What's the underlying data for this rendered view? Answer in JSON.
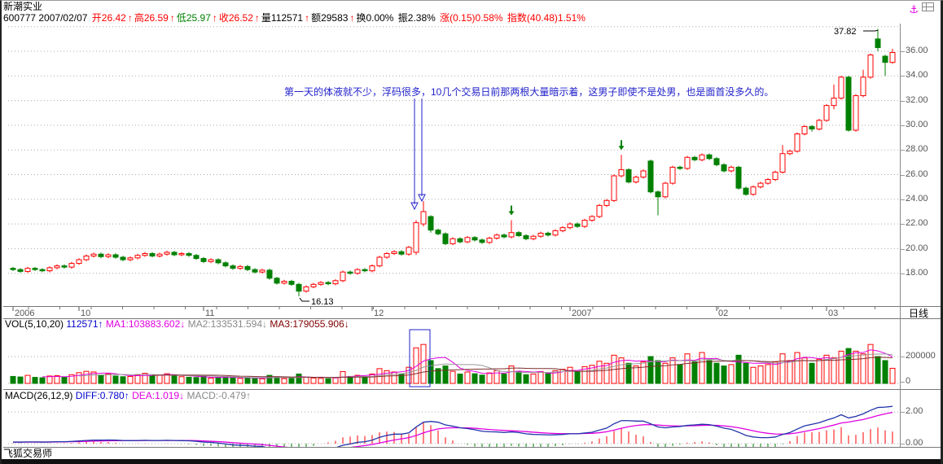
{
  "window": {
    "title": "新潮实业",
    "status_bar": "飞狐交易师",
    "period_label": "日线"
  },
  "colors": {
    "up": "#ff0000",
    "down": "#008000",
    "annotation": "#2222cc",
    "ma1": "#e000e0",
    "ma2": "#999999",
    "ma3": "#803030",
    "diff": "#2233aa",
    "dea": "#e000e0",
    "grid": "#aaaaaa"
  },
  "info_bar": {
    "segments": [
      {
        "t": "600777  2007/02/07  ",
        "c": "k"
      },
      {
        "t": "开26.42",
        "c": "r"
      },
      {
        "t": "↑",
        "c": "r"
      },
      {
        "t": "高26.59",
        "c": "r"
      },
      {
        "t": "↑",
        "c": "r"
      },
      {
        "t": "低25.97",
        "c": "g"
      },
      {
        "t": "↑",
        "c": "r"
      },
      {
        "t": "收26.52",
        "c": "r"
      },
      {
        "t": "↑",
        "c": "r"
      },
      {
        "t": "量112571",
        "c": "k"
      },
      {
        "t": "↑",
        "c": "r"
      },
      {
        "t": "额29583",
        "c": "k"
      },
      {
        "t": "↑",
        "c": "r"
      },
      {
        "t": "换0.00%",
        "c": "k"
      },
      {
        "t": " 振2.38%",
        "c": "k"
      },
      {
        "t": " 涨(0.15)0.58%",
        "c": "r"
      },
      {
        "t": " 指数(40.48)1.51%",
        "c": "r"
      }
    ]
  },
  "vol_header": {
    "segments": [
      {
        "t": "VOL(5,10,20)  ",
        "c": "k"
      },
      {
        "t": "112571↑",
        "c": "b"
      },
      {
        "t": " MA1:103883.602↓",
        "c": "m"
      },
      {
        "t": " MA2:133531.594↓",
        "c": "gr"
      },
      {
        "t": " MA3:179055.906↓",
        "c": "dr"
      }
    ]
  },
  "macd_header": {
    "segments": [
      {
        "t": "MACD(26,12,9)  ",
        "c": "k"
      },
      {
        "t": "DIFF:0.780↑",
        "c": "b"
      },
      {
        "t": " DEA:1.019↓",
        "c": "m"
      },
      {
        "t": " MACD:-0.479↑",
        "c": "gr"
      }
    ]
  },
  "chart_data": [
    {
      "type": "candlestick",
      "title": "新潮实业 600777 日线",
      "annotation_text": "第一天的体液就不少，浮码很多，10几个交易日前那两根大量暗示着，这男子即使不是处男，也是面首没多久的。",
      "y_tick_labels": [
        "36.00",
        "34.00",
        "32.00",
        "30.00",
        "28.00",
        "26.00",
        "24.00",
        "22.00",
        "20.00",
        "18.00"
      ],
      "ylim": [
        16.0,
        38.3
      ],
      "high_marker": {
        "label": "37.82",
        "candle": 118
      },
      "low_marker": {
        "label": "16.13",
        "candle": 39
      },
      "blue_arrow_candles": [
        55,
        56
      ],
      "green_arrow_candles": [
        68,
        83
      ],
      "x_ticks": [
        {
          "i": 0,
          "label": "2006"
        },
        {
          "i": 9,
          "label": "10"
        },
        {
          "i": 26,
          "label": "11"
        },
        {
          "i": 49,
          "label": "12"
        },
        {
          "i": 76,
          "label": "2007"
        },
        {
          "i": 96,
          "label": "02"
        },
        {
          "i": 111,
          "label": "03"
        }
      ],
      "candles": [
        [
          18.4,
          18.52,
          18.18,
          18.3
        ],
        [
          18.3,
          18.42,
          18.03,
          18.15
        ],
        [
          18.15,
          18.52,
          18.03,
          18.4
        ],
        [
          18.4,
          18.52,
          18.18,
          18.3
        ],
        [
          18.3,
          18.42,
          18.08,
          18.2
        ],
        [
          18.2,
          18.57,
          18.08,
          18.45
        ],
        [
          18.45,
          18.72,
          18.33,
          18.6
        ],
        [
          18.6,
          18.72,
          18.38,
          18.5
        ],
        [
          18.5,
          18.92,
          18.38,
          18.8
        ],
        [
          18.8,
          19.22,
          18.68,
          19.1
        ],
        [
          19.1,
          19.52,
          18.98,
          19.4
        ],
        [
          19.4,
          19.67,
          19.28,
          19.55
        ],
        [
          19.55,
          19.67,
          19.23,
          19.35
        ],
        [
          19.35,
          19.62,
          19.23,
          19.5
        ],
        [
          19.5,
          19.62,
          19.18,
          19.3
        ],
        [
          19.3,
          19.42,
          18.98,
          19.1
        ],
        [
          19.1,
          19.37,
          18.98,
          19.25
        ],
        [
          19.25,
          19.57,
          19.13,
          19.45
        ],
        [
          19.45,
          19.72,
          19.33,
          19.6
        ],
        [
          19.6,
          19.72,
          19.28,
          19.4
        ],
        [
          19.4,
          19.67,
          19.28,
          19.55
        ],
        [
          19.55,
          19.82,
          19.43,
          19.7
        ],
        [
          19.7,
          19.82,
          19.38,
          19.5
        ],
        [
          19.5,
          19.72,
          19.38,
          19.6
        ],
        [
          19.6,
          19.72,
          19.33,
          19.45
        ],
        [
          19.45,
          19.57,
          19.08,
          19.2
        ],
        [
          19.2,
          19.32,
          18.83,
          18.95
        ],
        [
          18.95,
          19.22,
          18.83,
          19.1
        ],
        [
          19.1,
          19.22,
          18.73,
          18.85
        ],
        [
          18.85,
          18.97,
          18.48,
          18.6
        ],
        [
          18.6,
          18.72,
          18.28,
          18.4
        ],
        [
          18.4,
          18.67,
          18.28,
          18.55
        ],
        [
          18.55,
          18.67,
          18.18,
          18.3
        ],
        [
          18.3,
          18.42,
          17.98,
          18.1
        ],
        [
          18.1,
          18.37,
          17.98,
          18.25
        ],
        [
          18.25,
          18.37,
          17.48,
          17.6
        ],
        [
          17.6,
          17.72,
          17.08,
          17.2
        ],
        [
          17.2,
          17.47,
          17.08,
          17.35
        ],
        [
          17.35,
          17.47,
          16.98,
          17.1
        ],
        [
          17.1,
          17.22,
          16.13,
          16.55
        ],
        [
          16.55,
          17.02,
          16.43,
          16.9
        ],
        [
          16.9,
          17.22,
          16.78,
          17.1
        ],
        [
          17.1,
          17.37,
          16.98,
          17.25
        ],
        [
          17.25,
          17.37,
          17.03,
          17.15
        ],
        [
          17.15,
          17.52,
          17.03,
          17.4
        ],
        [
          17.4,
          18.22,
          17.28,
          18.1
        ],
        [
          18.1,
          18.22,
          17.88,
          18.0
        ],
        [
          18.0,
          18.42,
          17.88,
          18.3
        ],
        [
          18.3,
          18.42,
          18.08,
          18.2
        ],
        [
          18.2,
          18.72,
          18.08,
          18.6
        ],
        [
          18.6,
          19.42,
          18.48,
          19.3
        ],
        [
          19.3,
          19.72,
          19.18,
          19.6
        ],
        [
          19.6,
          19.87,
          19.48,
          19.75
        ],
        [
          19.75,
          19.87,
          19.43,
          19.55
        ],
        [
          19.55,
          20.22,
          19.43,
          20.1
        ],
        [
          19.7,
          22.3,
          19.5,
          22.1
        ],
        [
          22.0,
          23.85,
          21.8,
          23.0
        ],
        [
          22.6,
          22.7,
          21.3,
          21.5
        ],
        [
          21.5,
          21.62,
          21.08,
          21.2
        ],
        [
          21.2,
          21.32,
          20.28,
          20.4
        ],
        [
          20.4,
          20.92,
          20.28,
          20.8
        ],
        [
          20.8,
          20.92,
          20.43,
          20.55
        ],
        [
          20.55,
          21.02,
          20.43,
          20.9
        ],
        [
          20.9,
          21.02,
          20.58,
          20.7
        ],
        [
          20.7,
          20.82,
          20.38,
          20.5
        ],
        [
          20.5,
          20.97,
          20.38,
          20.85
        ],
        [
          20.85,
          21.22,
          20.73,
          21.1
        ],
        [
          21.1,
          21.22,
          20.83,
          20.95
        ],
        [
          20.95,
          22.3,
          20.83,
          21.3
        ],
        [
          21.3,
          21.42,
          20.93,
          21.05
        ],
        [
          21.05,
          21.17,
          20.68,
          20.8
        ],
        [
          20.8,
          21.12,
          20.68,
          21.0
        ],
        [
          21.0,
          21.37,
          20.88,
          21.25
        ],
        [
          21.25,
          21.37,
          20.98,
          21.1
        ],
        [
          21.1,
          21.57,
          20.98,
          21.45
        ],
        [
          21.45,
          21.82,
          21.33,
          21.7
        ],
        [
          21.7,
          22.12,
          21.58,
          22.0
        ],
        [
          22.0,
          22.12,
          21.68,
          21.8
        ],
        [
          21.8,
          22.42,
          21.68,
          22.3
        ],
        [
          22.3,
          22.72,
          22.18,
          22.6
        ],
        [
          22.6,
          23.62,
          22.48,
          23.5
        ],
        [
          23.5,
          24.02,
          23.38,
          23.9
        ],
        [
          23.9,
          26.02,
          23.78,
          25.9
        ],
        [
          25.9,
          27.6,
          25.78,
          26.4
        ],
        [
          26.4,
          26.52,
          25.28,
          25.4
        ],
        [
          25.4,
          25.92,
          25.28,
          25.8
        ],
        [
          25.8,
          26.42,
          25.68,
          26.3
        ],
        [
          27.1,
          27.22,
          24.48,
          24.6
        ],
        [
          24.6,
          24.72,
          22.7,
          24.2
        ],
        [
          24.2,
          25.42,
          24.08,
          25.3
        ],
        [
          25.3,
          26.72,
          25.18,
          26.6
        ],
        [
          26.6,
          26.72,
          26.38,
          26.5
        ],
        [
          26.5,
          27.52,
          26.38,
          27.4
        ],
        [
          27.4,
          27.52,
          27.08,
          27.2
        ],
        [
          27.2,
          27.72,
          27.08,
          27.6
        ],
        [
          27.6,
          27.72,
          27.18,
          27.3
        ],
        [
          27.3,
          27.42,
          26.68,
          26.8
        ],
        [
          26.8,
          26.92,
          26.18,
          26.3
        ],
        [
          26.3,
          26.72,
          26.18,
          26.6
        ],
        [
          26.6,
          26.72,
          24.78,
          24.9
        ],
        [
          24.9,
          25.02,
          24.28,
          24.4
        ],
        [
          24.4,
          25.12,
          24.28,
          25.0
        ],
        [
          25.0,
          25.42,
          24.88,
          25.3
        ],
        [
          25.3,
          25.72,
          25.18,
          25.6
        ],
        [
          25.6,
          26.32,
          25.48,
          26.2
        ],
        [
          26.2,
          28.4,
          26.08,
          27.7
        ],
        [
          27.7,
          28.02,
          27.58,
          27.9
        ],
        [
          27.9,
          29.42,
          27.78,
          29.3
        ],
        [
          29.3,
          30.02,
          29.18,
          29.9
        ],
        [
          29.9,
          30.02,
          29.48,
          29.7
        ],
        [
          29.7,
          30.52,
          29.58,
          30.4
        ],
        [
          30.4,
          31.72,
          30.28,
          31.6
        ],
        [
          31.6,
          33.3,
          31.3,
          32.2
        ],
        [
          32.2,
          34.02,
          32.08,
          33.9
        ],
        [
          33.9,
          34.02,
          29.48,
          29.6
        ],
        [
          29.6,
          32.52,
          29.48,
          32.4
        ],
        [
          32.4,
          34.5,
          32.28,
          33.9
        ],
        [
          33.9,
          35.82,
          33.78,
          35.7
        ],
        [
          37.0,
          37.82,
          36.0,
          36.3
        ],
        [
          35.6,
          35.72,
          34.0,
          35.1
        ],
        [
          35.1,
          36.2,
          34.98,
          35.9
        ]
      ]
    },
    {
      "type": "bar",
      "name": "VOL(5,10,20)",
      "y_tick_labels": [
        "200000",
        "0"
      ],
      "boxed_candles": [
        55,
        56
      ],
      "values": [
        52000,
        48000,
        60000,
        45000,
        42000,
        55000,
        58000,
        46000,
        65000,
        80000,
        90000,
        85000,
        60000,
        70000,
        55000,
        50000,
        52000,
        62000,
        75000,
        58000,
        64000,
        72000,
        55000,
        50000,
        46000,
        44000,
        52000,
        40000,
        45000,
        50000,
        42000,
        38000,
        40000,
        36000,
        34000,
        60000,
        48000,
        36000,
        38000,
        70000,
        45000,
        40000,
        38000,
        35000,
        42000,
        88000,
        52000,
        60000,
        48000,
        70000,
        110000,
        95000,
        85000,
        70000,
        120000,
        265000,
        290000,
        170000,
        110000,
        130000,
        90000,
        70000,
        85000,
        72000,
        62000,
        78000,
        95000,
        70000,
        130000,
        85000,
        65000,
        70000,
        88000,
        72000,
        95000,
        105000,
        120000,
        90000,
        125000,
        135000,
        165000,
        150000,
        210000,
        190000,
        150000,
        130000,
        160000,
        200000,
        170000,
        150000,
        190000,
        140000,
        220000,
        160000,
        230000,
        170000,
        150000,
        130000,
        140000,
        210000,
        150000,
        120000,
        130000,
        140000,
        160000,
        220000,
        170000,
        230000,
        190000,
        150000,
        180000,
        210000,
        190000,
        240000,
        260000,
        240000,
        220000,
        290000,
        200000,
        170000,
        112571
      ]
    },
    {
      "type": "line+bar",
      "name": "MACD(26,12,9)",
      "y_tick_labels": [
        "2.00",
        "0.00"
      ],
      "diff": [
        0.1,
        0.1,
        0.11,
        0.11,
        0.1,
        0.11,
        0.12,
        0.12,
        0.14,
        0.17,
        0.2,
        0.22,
        0.22,
        0.23,
        0.22,
        0.2,
        0.19,
        0.2,
        0.21,
        0.2,
        0.2,
        0.21,
        0.2,
        0.19,
        0.18,
        0.15,
        0.1,
        0.08,
        0.04,
        -0.02,
        -0.08,
        -0.1,
        -0.12,
        -0.16,
        -0.18,
        -0.28,
        -0.38,
        -0.42,
        -0.46,
        -0.55,
        -0.52,
        -0.45,
        -0.38,
        -0.33,
        -0.26,
        -0.1,
        -0.02,
        0.08,
        0.12,
        0.22,
        0.4,
        0.52,
        0.6,
        0.6,
        0.68,
        1.05,
        1.35,
        1.4,
        1.35,
        1.18,
        1.1,
        1.0,
        0.95,
        0.88,
        0.78,
        0.75,
        0.74,
        0.7,
        0.74,
        0.7,
        0.62,
        0.58,
        0.57,
        0.55,
        0.56,
        0.58,
        0.62,
        0.62,
        0.67,
        0.72,
        0.85,
        0.98,
        1.25,
        1.45,
        1.45,
        1.42,
        1.42,
        1.25,
        1.05,
        1.0,
        1.05,
        1.08,
        1.15,
        1.18,
        1.22,
        1.2,
        1.1,
        0.98,
        0.9,
        0.72,
        0.52,
        0.42,
        0.38,
        0.38,
        0.42,
        0.58,
        0.7,
        0.92,
        1.12,
        1.22,
        1.32,
        1.48,
        1.62,
        1.82,
        1.62,
        1.72,
        1.88,
        2.1,
        2.28,
        2.3,
        2.35
      ],
      "dea": [
        0.09,
        0.09,
        0.1,
        0.1,
        0.1,
        0.1,
        0.11,
        0.11,
        0.12,
        0.13,
        0.14,
        0.16,
        0.17,
        0.18,
        0.19,
        0.19,
        0.19,
        0.19,
        0.2,
        0.2,
        0.2,
        0.2,
        0.2,
        0.2,
        0.2,
        0.19,
        0.17,
        0.15,
        0.13,
        0.1,
        0.06,
        0.03,
        0.0,
        -0.03,
        -0.06,
        -0.11,
        -0.16,
        -0.21,
        -0.26,
        -0.32,
        -0.36,
        -0.38,
        -0.38,
        -0.37,
        -0.35,
        -0.3,
        -0.24,
        -0.18,
        -0.12,
        -0.05,
        0.04,
        0.14,
        0.23,
        0.3,
        0.38,
        0.51,
        0.68,
        0.82,
        0.93,
        0.98,
        1.0,
        1.0,
        0.99,
        0.97,
        0.93,
        0.89,
        0.86,
        0.83,
        0.81,
        0.79,
        0.76,
        0.72,
        0.69,
        0.66,
        0.64,
        0.63,
        0.63,
        0.63,
        0.64,
        0.65,
        0.69,
        0.75,
        0.85,
        0.97,
        1.07,
        1.14,
        1.19,
        1.2,
        1.17,
        1.14,
        1.12,
        1.11,
        1.12,
        1.13,
        1.15,
        1.16,
        1.15,
        1.12,
        1.07,
        1.0,
        0.91,
        0.81,
        0.72,
        0.65,
        0.61,
        0.6,
        0.62,
        0.68,
        0.77,
        0.86,
        0.95,
        1.06,
        1.17,
        1.3,
        1.36,
        1.44,
        1.52,
        1.64,
        1.77,
        1.88,
        1.97
      ]
    }
  ]
}
